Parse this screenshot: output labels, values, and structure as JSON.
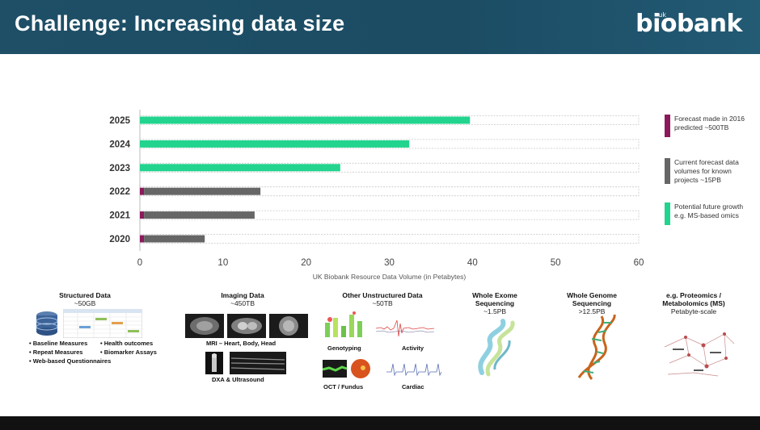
{
  "slide": {
    "title": "Challenge: Increasing data size",
    "logo_text": "biobank",
    "logo_prefix": "uk"
  },
  "chart_data": {
    "type": "bar",
    "orientation": "horizontal",
    "stacked": true,
    "categories": [
      "2025",
      "2024",
      "2023",
      "2022",
      "2021",
      "2020"
    ],
    "series": [
      {
        "name": "Forecast made in 2016 predicted ~500TB",
        "color": "#8b1a5c",
        "values": [
          0,
          0,
          0,
          0.5,
          0.5,
          0.5
        ]
      },
      {
        "name": "Current forecast data volumes for known projects ~15PB",
        "color": "#666666",
        "values": [
          0,
          0,
          0,
          14.0,
          13.3,
          7.3
        ]
      },
      {
        "name": "Potential future growth e.g. MS-based omics",
        "color": "#22d48e",
        "values": [
          39.7,
          32.4,
          24.1,
          0,
          0,
          0
        ]
      }
    ],
    "xlim": [
      0,
      60
    ],
    "xticks": [
      "0",
      "10",
      "20",
      "30",
      "40",
      "50",
      "60"
    ],
    "xlabel": "UK Biobank Resource Data Volume (in Petabytes)",
    "ylabel": "",
    "legend_position": "right",
    "grid": false
  },
  "legend": [
    {
      "text": "Forecast made in 2016 predicted ~500TB",
      "color": "#8b1a5c"
    },
    {
      "text": "Current forecast data volumes for known projects ~15PB",
      "color": "#666666"
    },
    {
      "text": "Potential future growth e.g. MS-based omics",
      "color": "#22d48e"
    }
  ],
  "categories": {
    "structured": {
      "title": "Structured Data",
      "size": "~50GB",
      "items": [
        "• Baseline Measures",
        "• Health outcomes",
        "• Repeat Measures",
        "• Biomarker Assays",
        "• Web-based Questionnaires"
      ]
    },
    "imaging": {
      "title": "Imaging Data",
      "size": "~450TB",
      "mri_label": "MRI – Heart, Body, Head",
      "dxa_label": "DXA & Ultrasound"
    },
    "unstructured": {
      "title": "Other Unstructured Data",
      "size": "~50TB",
      "genotyping": "Genotyping",
      "activity": "Activity",
      "oct": "OCT / Fundus",
      "cardiac": "Cardiac"
    },
    "exome": {
      "title": "Whole Exome Sequencing",
      "size": "~1.5PB"
    },
    "genome": {
      "title": "Whole Genome Sequencing",
      "size": ">12.5PB"
    },
    "proteomics": {
      "title_line1": "e.g. Proteomics /",
      "title_line2": "Metabolomics (MS)",
      "size": "Petabyte-scale"
    }
  }
}
